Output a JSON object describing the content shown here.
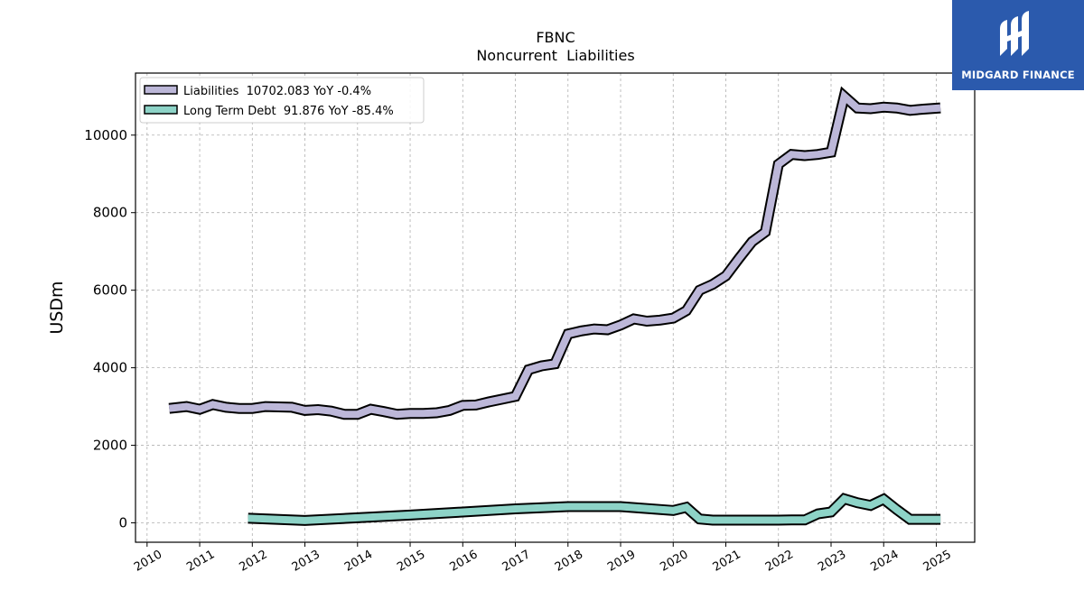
{
  "logo": {
    "text": "MIDGARD FINANCE",
    "bg_color": "#2b5aad"
  },
  "chart_data": {
    "type": "line",
    "title": "FBNC",
    "subtitle": "Noncurrent  Liabilities",
    "ylabel": "USDm",
    "xlabel": "",
    "xlim": [
      2009.78,
      2025.73
    ],
    "ylim": [
      -500,
      11600
    ],
    "yticks": [
      0,
      2000,
      4000,
      6000,
      8000,
      10000
    ],
    "xticks": [
      "2010",
      "2011",
      "2012",
      "2013",
      "2014",
      "2015",
      "2016",
      "2017",
      "2018",
      "2019",
      "2020",
      "2021",
      "2022",
      "2023",
      "2024",
      "2025"
    ],
    "grid": true,
    "legend_position": "top-left",
    "series": [
      {
        "name": "Liabilities",
        "legend_label": "Liabilities  10702.083 YoY -0.4%",
        "color": "#bcb7d8",
        "x": [
          2010.42,
          2010.75,
          2011.0,
          2011.25,
          2011.5,
          2011.75,
          2012.0,
          2012.25,
          2012.5,
          2012.75,
          2013.0,
          2013.25,
          2013.5,
          2013.75,
          2014.0,
          2014.25,
          2014.5,
          2014.75,
          2015.0,
          2015.25,
          2015.5,
          2015.75,
          2016.0,
          2016.25,
          2016.5,
          2016.75,
          2017.0,
          2017.25,
          2017.5,
          2017.75,
          2018.0,
          2018.25,
          2018.5,
          2018.75,
          2019.0,
          2019.25,
          2019.5,
          2019.75,
          2020.0,
          2020.25,
          2020.5,
          2020.75,
          2021.0,
          2021.25,
          2021.5,
          2021.75,
          2022.0,
          2022.25,
          2022.5,
          2022.75,
          2023.0,
          2023.25,
          2023.5,
          2023.75,
          2024.0,
          2024.25,
          2024.5,
          2024.75,
          2025.08
        ],
        "values": [
          2950,
          3000,
          2930,
          3050,
          2980,
          2950,
          2950,
          3000,
          2990,
          2980,
          2900,
          2920,
          2880,
          2800,
          2800,
          2930,
          2870,
          2800,
          2820,
          2820,
          2840,
          2900,
          3030,
          3040,
          3120,
          3190,
          3260,
          3950,
          4050,
          4100,
          4870,
          4950,
          5000,
          4980,
          5100,
          5260,
          5200,
          5230,
          5280,
          5470,
          6000,
          6150,
          6370,
          6820,
          7250,
          7500,
          9250,
          9500,
          9470,
          9500,
          9560,
          11000,
          10700,
          10680,
          10720,
          10700,
          10640,
          10670,
          10702
        ]
      },
      {
        "name": "Long Term Debt",
        "legend_label": "Long Term Debt  91.876 YoY -85.4%",
        "color": "#8dd3c7",
        "x": [
          2011.92,
          2013.0,
          2014.0,
          2015.0,
          2016.0,
          2017.0,
          2018.0,
          2019.0,
          2020.0,
          2020.25,
          2020.5,
          2020.75,
          2021.0,
          2021.5,
          2022.0,
          2022.25,
          2022.5,
          2022.75,
          2023.0,
          2023.25,
          2023.5,
          2023.75,
          2024.0,
          2024.25,
          2024.5,
          2025.08
        ],
        "values": [
          120,
          60,
          130,
          200,
          280,
          360,
          420,
          420,
          320,
          400,
          100,
          70,
          70,
          70,
          70,
          75,
          75,
          230,
          280,
          620,
          520,
          450,
          610,
          340,
          90,
          92
        ]
      }
    ]
  }
}
